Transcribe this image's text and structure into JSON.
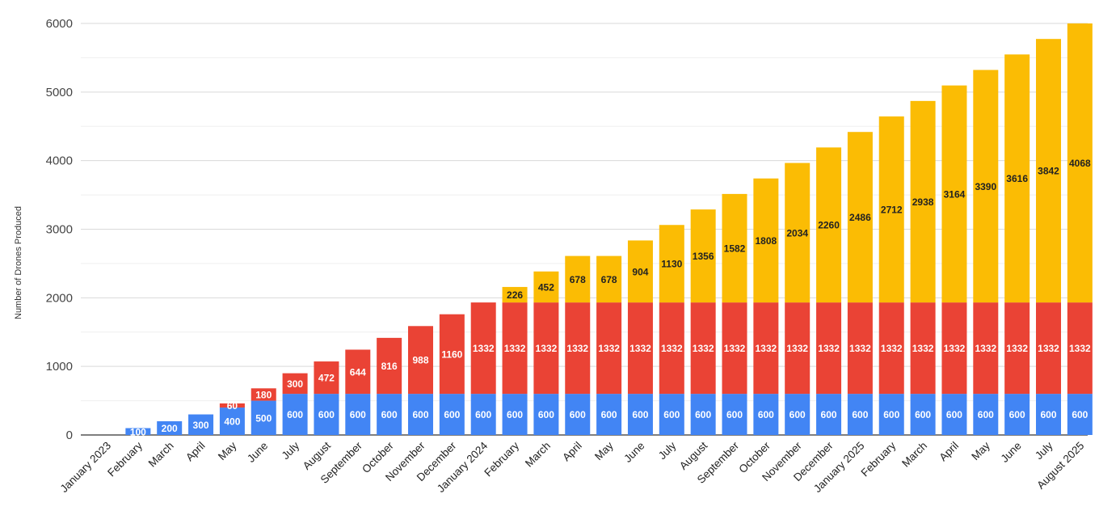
{
  "chart_data": {
    "type": "bar",
    "stacked": true,
    "title": "",
    "xlabel": "",
    "ylabel": "Number of Drones Produced",
    "ylim": [
      0,
      6000
    ],
    "yticks": [
      0,
      1000,
      2000,
      3000,
      4000,
      5000,
      6000
    ],
    "grid": true,
    "legend": "none",
    "categories": [
      "January 2023",
      "February",
      "March",
      "April",
      "May",
      "June",
      "July",
      "August",
      "September",
      "October",
      "November",
      "December",
      "January 2024",
      "February",
      "March",
      "April",
      "May",
      "June",
      "July",
      "August",
      "September",
      "October",
      "November",
      "December",
      "January 2025",
      "February",
      "March",
      "April",
      "May",
      "June",
      "July",
      "August 2025"
    ],
    "series": [
      {
        "color": "#4285f4",
        "label_color": "#ffffff",
        "values": [
          0,
          100,
          200,
          300,
          400,
          500,
          600,
          600,
          600,
          600,
          600,
          600,
          600,
          600,
          600,
          600,
          600,
          600,
          600,
          600,
          600,
          600,
          600,
          600,
          600,
          600,
          600,
          600,
          600,
          600,
          600,
          600
        ]
      },
      {
        "color": "#ea4335",
        "label_color": "#ffffff",
        "values": [
          0,
          0,
          0,
          0,
          60,
          180,
          300,
          472,
          644,
          816,
          988,
          1160,
          1332,
          1332,
          1332,
          1332,
          1332,
          1332,
          1332,
          1332,
          1332,
          1332,
          1332,
          1332,
          1332,
          1332,
          1332,
          1332,
          1332,
          1332,
          1332,
          1332
        ]
      },
      {
        "color": "#fbbc04",
        "label_color": "#222222",
        "values": [
          0,
          0,
          0,
          0,
          0,
          0,
          0,
          0,
          0,
          0,
          0,
          0,
          0,
          226,
          452,
          678,
          678,
          904,
          1130,
          1356,
          1582,
          1808,
          2034,
          2260,
          2486,
          2712,
          2938,
          3164,
          3390,
          3616,
          3842,
          4068
        ]
      }
    ]
  }
}
